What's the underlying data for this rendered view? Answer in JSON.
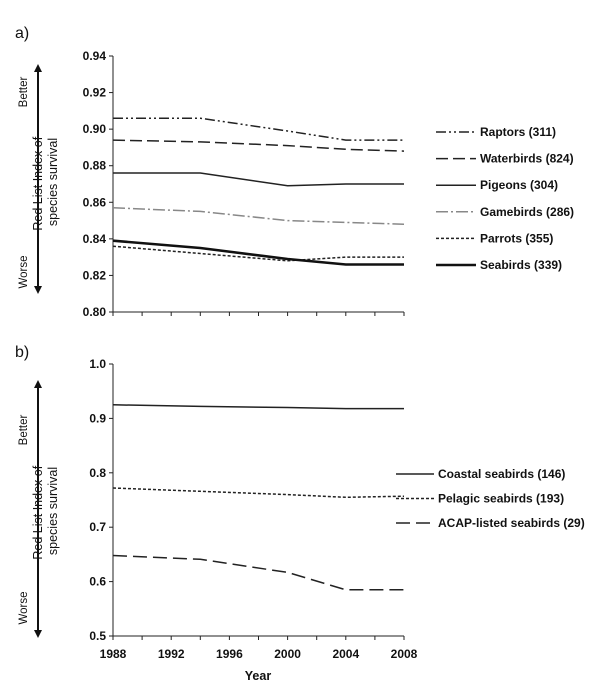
{
  "chart_data": [
    {
      "type": "line",
      "panel_label": "a)",
      "ylabel": "Red List Index of species survival",
      "better_label": "Better",
      "worse_label": "Worse",
      "ylim": [
        0.8,
        0.94
      ],
      "yticks": [
        "0.80",
        "0.82",
        "0.84",
        "0.86",
        "0.88",
        "0.90",
        "0.92",
        "0.94"
      ],
      "grid": false,
      "legend_position": "right",
      "x": [
        1988,
        1994,
        2000,
        2004,
        2008
      ],
      "series": [
        {
          "name": "Raptors (311)",
          "dash": "10,3,2,3,2,3",
          "width": 1.5,
          "color": "#222222",
          "values": [
            0.906,
            0.906,
            0.899,
            0.894,
            0.894
          ]
        },
        {
          "name": "Waterbirds (824)",
          "dash": "12,5",
          "width": 1.5,
          "color": "#222222",
          "values": [
            0.894,
            0.893,
            0.891,
            0.889,
            0.888
          ]
        },
        {
          "name": "Pigeons (304)",
          "dash": "",
          "width": 1.5,
          "color": "#222222",
          "values": [
            0.876,
            0.876,
            0.869,
            0.87,
            0.87
          ]
        },
        {
          "name": "Gamebirds (286)",
          "dash": "12,3,2,3",
          "width": 1.5,
          "color": "#888888",
          "values": [
            0.857,
            0.855,
            0.85,
            0.849,
            0.848
          ]
        },
        {
          "name": "Parrots (355)",
          "dash": "3,2",
          "width": 1.5,
          "color": "#222222",
          "values": [
            0.836,
            0.832,
            0.828,
            0.83,
            0.83
          ]
        },
        {
          "name": "Seabirds (339)",
          "dash": "",
          "width": 2.6,
          "color": "#111111",
          "values": [
            0.839,
            0.835,
            0.829,
            0.826,
            0.826
          ]
        }
      ]
    },
    {
      "type": "line",
      "panel_label": "b)",
      "ylabel": "Red List Index of species survival",
      "better_label": "Better",
      "worse_label": "Worse",
      "ylim": [
        0.5,
        1.0
      ],
      "yticks": [
        "0.5",
        "0.6",
        "0.7",
        "0.8",
        "0.9",
        "1.0"
      ],
      "xlabel": "Year",
      "xticks": [
        "1988",
        "1992",
        "1996",
        "2000",
        "2004",
        "2008"
      ],
      "grid": false,
      "legend_position": "right",
      "x": [
        1988,
        1994,
        2000,
        2004,
        2008
      ],
      "series": [
        {
          "name": "Coastal seabirds (146)",
          "dash": "",
          "width": 1.5,
          "color": "#222222",
          "values": [
            0.925,
            0.922,
            0.92,
            0.918,
            0.918
          ]
        },
        {
          "name": "Pelagic seabirds (193)",
          "dash": "3,2",
          "width": 1.5,
          "color": "#222222",
          "values": [
            0.772,
            0.766,
            0.76,
            0.755,
            0.757
          ]
        },
        {
          "name": "ACAP-listed seabirds (29)",
          "dash": "14,6",
          "width": 1.5,
          "color": "#222222",
          "values": [
            0.648,
            0.641,
            0.617,
            0.585,
            0.585
          ]
        }
      ]
    }
  ]
}
